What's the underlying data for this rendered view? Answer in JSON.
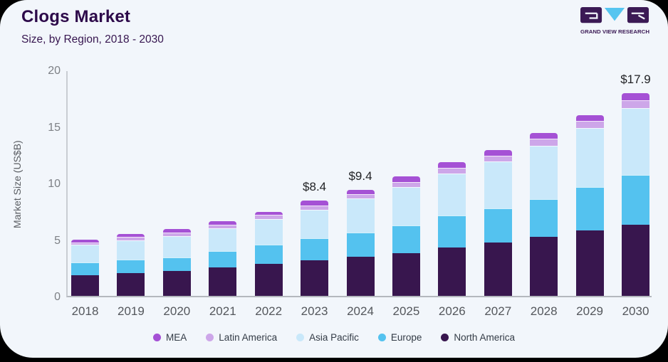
{
  "page": {
    "outer_background": "#000000",
    "card_background": "#f2f6fb"
  },
  "header": {
    "title": "Clogs Market",
    "subtitle": "Size, by Region, 2018 - 2030",
    "logo_text": "GRAND VIEW RESEARCH",
    "logo_colors": {
      "block": "#3b1a55",
      "triangle": "#56c5f0",
      "glyph": "#f2f6fb"
    }
  },
  "chart_data": {
    "type": "bar",
    "stacked": true,
    "title": "Clogs Market",
    "subtitle": "Size, by Region, 2018 - 2030",
    "xlabel": "",
    "ylabel": "Market Size (US$B)",
    "ylim": [
      0,
      20
    ],
    "yticks": [
      0,
      5,
      10,
      15,
      20
    ],
    "grid": false,
    "legend_position": "bottom",
    "categories": [
      "2018",
      "2019",
      "2020",
      "2021",
      "2022",
      "2023",
      "2024",
      "2025",
      "2026",
      "2027",
      "2028",
      "2029",
      "2030"
    ],
    "series": [
      {
        "name": "North America",
        "color": "#38164e",
        "values": [
          1.85,
          2.0,
          2.2,
          2.5,
          2.8,
          3.15,
          3.45,
          3.8,
          4.25,
          4.7,
          5.2,
          5.8,
          6.3
        ]
      },
      {
        "name": "Europe",
        "color": "#54c2ef",
        "values": [
          1.1,
          1.2,
          1.2,
          1.45,
          1.7,
          1.95,
          2.15,
          2.4,
          2.85,
          3.05,
          3.35,
          3.8,
          4.4
        ]
      },
      {
        "name": "Asia Pacific",
        "color": "#c9e8fa",
        "values": [
          1.55,
          1.7,
          1.9,
          2.05,
          2.3,
          2.5,
          3.0,
          3.4,
          3.75,
          4.15,
          4.75,
          5.25,
          5.9
        ]
      },
      {
        "name": "Latin America",
        "color": "#cda6e9",
        "values": [
          0.25,
          0.3,
          0.3,
          0.3,
          0.35,
          0.4,
          0.4,
          0.45,
          0.45,
          0.5,
          0.6,
          0.6,
          0.7
        ]
      },
      {
        "name": "MEA",
        "color": "#a551d5",
        "values": [
          0.25,
          0.3,
          0.3,
          0.3,
          0.3,
          0.4,
          0.4,
          0.5,
          0.5,
          0.5,
          0.5,
          0.55,
          0.6
        ]
      }
    ],
    "totals": [
      5.0,
      5.5,
      5.9,
      6.6,
      7.45,
      8.4,
      9.4,
      10.55,
      11.8,
      12.9,
      14.4,
      16.0,
      17.9
    ],
    "bar_labels": [
      {
        "category": "2023",
        "text": "$8.4"
      },
      {
        "category": "2024",
        "text": "$9.4"
      },
      {
        "category": "2030",
        "text": "$17.9"
      }
    ],
    "legend_order": [
      "MEA",
      "Latin America",
      "Asia Pacific",
      "Europe",
      "North America"
    ]
  }
}
